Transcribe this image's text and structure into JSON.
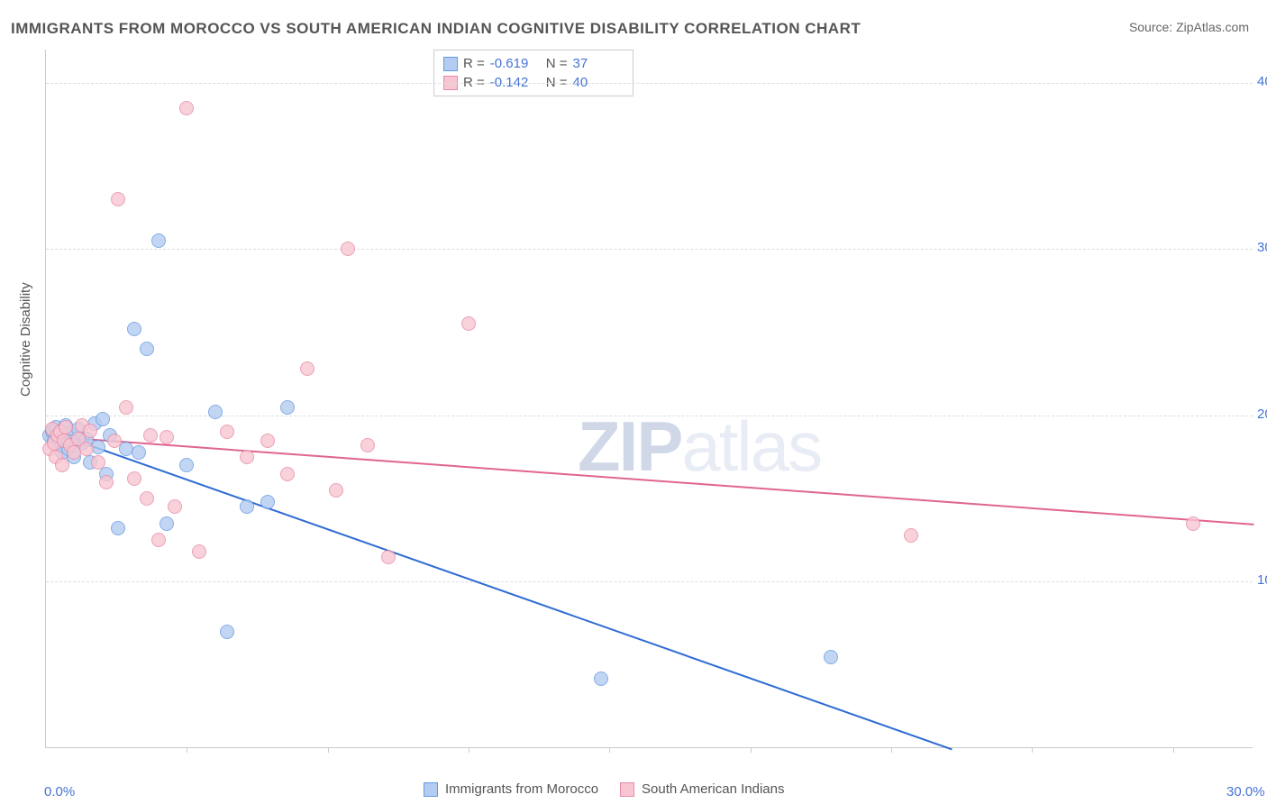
{
  "title": "IMMIGRANTS FROM MOROCCO VS SOUTH AMERICAN INDIAN COGNITIVE DISABILITY CORRELATION CHART",
  "source_label": "Source: ZipAtlas.com",
  "ylabel": "Cognitive Disability",
  "watermark": {
    "bold": "ZIP",
    "light": "atlas"
  },
  "chart": {
    "type": "scatter",
    "xlim": [
      0,
      30
    ],
    "ylim": [
      0,
      42
    ],
    "background_color": "#ffffff",
    "grid_color": "#dddddd",
    "axis_color": "#cccccc",
    "tick_color": "#4574d4",
    "yticks": [
      10,
      20,
      30,
      40
    ],
    "xticks": [
      0,
      30
    ],
    "xtick_minor": [
      3.5,
      7,
      10.5,
      14,
      17.5,
      21,
      24.5,
      28
    ],
    "series": [
      {
        "name": "Immigrants from Morocco",
        "fill": "#b3cdf2",
        "stroke": "#6699e0",
        "line_color": "#2e6bd4",
        "R": "-0.619",
        "N": "37",
        "trend": {
          "x1": 0,
          "y1": 19.2,
          "x2": 22.5,
          "y2": 0
        },
        "points": [
          [
            0.1,
            18.8
          ],
          [
            0.15,
            19.1
          ],
          [
            0.2,
            18.5
          ],
          [
            0.25,
            19.3
          ],
          [
            0.3,
            18.2
          ],
          [
            0.35,
            19.0
          ],
          [
            0.4,
            17.8
          ],
          [
            0.45,
            18.7
          ],
          [
            0.5,
            19.4
          ],
          [
            0.55,
            18.0
          ],
          [
            0.6,
            18.9
          ],
          [
            0.7,
            17.5
          ],
          [
            0.8,
            19.2
          ],
          [
            0.9,
            18.3
          ],
          [
            1.0,
            18.6
          ],
          [
            1.1,
            17.2
          ],
          [
            1.2,
            19.5
          ],
          [
            1.3,
            18.1
          ],
          [
            1.5,
            16.5
          ],
          [
            1.6,
            18.8
          ],
          [
            1.8,
            13.2
          ],
          [
            2.0,
            18.0
          ],
          [
            2.2,
            25.2
          ],
          [
            2.3,
            17.8
          ],
          [
            2.5,
            24.0
          ],
          [
            2.8,
            30.5
          ],
          [
            3.0,
            13.5
          ],
          [
            3.5,
            17.0
          ],
          [
            4.2,
            20.2
          ],
          [
            5.0,
            14.5
          ],
          [
            5.5,
            14.8
          ],
          [
            6.0,
            20.5
          ],
          [
            4.5,
            7.0
          ],
          [
            13.8,
            4.2
          ],
          [
            19.5,
            5.5
          ],
          [
            1.4,
            19.8
          ],
          [
            0.65,
            18.4
          ]
        ]
      },
      {
        "name": "South American Indians",
        "fill": "#f7c6d2",
        "stroke": "#e88aa5",
        "line_color": "#e06590",
        "R": "-0.142",
        "N": "40",
        "trend": {
          "x1": 0,
          "y1": 18.8,
          "x2": 30,
          "y2": 13.5
        },
        "points": [
          [
            0.1,
            18.0
          ],
          [
            0.15,
            19.2
          ],
          [
            0.2,
            18.3
          ],
          [
            0.25,
            17.5
          ],
          [
            0.3,
            18.8
          ],
          [
            0.35,
            19.0
          ],
          [
            0.4,
            17.0
          ],
          [
            0.45,
            18.5
          ],
          [
            0.5,
            19.3
          ],
          [
            0.6,
            18.2
          ],
          [
            0.7,
            17.8
          ],
          [
            0.8,
            18.6
          ],
          [
            0.9,
            19.4
          ],
          [
            1.0,
            18.0
          ],
          [
            1.1,
            19.1
          ],
          [
            1.3,
            17.2
          ],
          [
            1.5,
            16.0
          ],
          [
            1.7,
            18.5
          ],
          [
            1.8,
            33.0
          ],
          [
            2.0,
            20.5
          ],
          [
            2.2,
            16.2
          ],
          [
            2.5,
            15.0
          ],
          [
            2.8,
            12.5
          ],
          [
            3.0,
            18.7
          ],
          [
            3.2,
            14.5
          ],
          [
            3.5,
            38.5
          ],
          [
            3.8,
            11.8
          ],
          [
            4.5,
            19.0
          ],
          [
            5.0,
            17.5
          ],
          [
            5.5,
            18.5
          ],
          [
            6.0,
            16.5
          ],
          [
            6.5,
            22.8
          ],
          [
            7.2,
            15.5
          ],
          [
            7.5,
            30.0
          ],
          [
            8.0,
            18.2
          ],
          [
            8.5,
            11.5
          ],
          [
            10.5,
            25.5
          ],
          [
            21.5,
            12.8
          ],
          [
            28.5,
            13.5
          ],
          [
            2.6,
            18.8
          ]
        ]
      }
    ]
  },
  "bottom_legend": [
    {
      "label": "Immigrants from Morocco",
      "fill": "#b3cdf2",
      "stroke": "#6699e0"
    },
    {
      "label": "South American Indians",
      "fill": "#f7c6d2",
      "stroke": "#e88aa5"
    }
  ]
}
